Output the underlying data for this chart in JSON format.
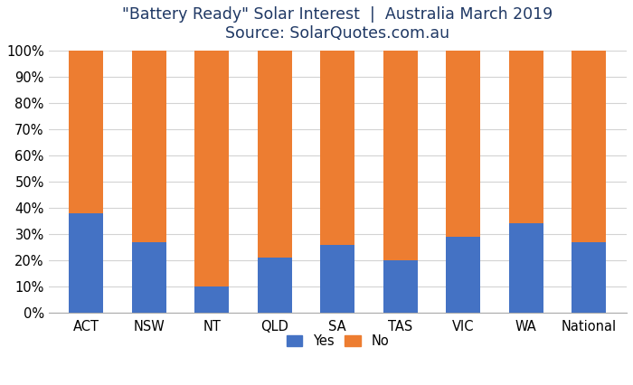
{
  "categories": [
    "ACT",
    "NSW",
    "NT",
    "QLD",
    "SA",
    "TAS",
    "VIC",
    "WA",
    "National"
  ],
  "yes_values": [
    38,
    27,
    10,
    21,
    26,
    20,
    29,
    34,
    27
  ],
  "no_values": [
    62,
    73,
    90,
    79,
    74,
    80,
    71,
    66,
    73
  ],
  "yes_color": "#4472C4",
  "no_color": "#ED7D31",
  "title_line1": "\"Battery Ready\" Solar Interest  |  Australia March 2019",
  "title_line2": "Source: SolarQuotes.com.au",
  "ylim": [
    0,
    100
  ],
  "ytick_labels": [
    "0%",
    "10%",
    "20%",
    "30%",
    "40%",
    "50%",
    "60%",
    "70%",
    "80%",
    "90%",
    "100%"
  ],
  "ytick_values": [
    0,
    10,
    20,
    30,
    40,
    50,
    60,
    70,
    80,
    90,
    100
  ],
  "legend_yes": "Yes",
  "legend_no": "No",
  "background_color": "#ffffff",
  "grid_color": "#d3d3d3",
  "title_fontsize": 12.5,
  "tick_fontsize": 10.5,
  "legend_fontsize": 10.5,
  "bar_width": 0.55,
  "title_color": "#1F3864"
}
